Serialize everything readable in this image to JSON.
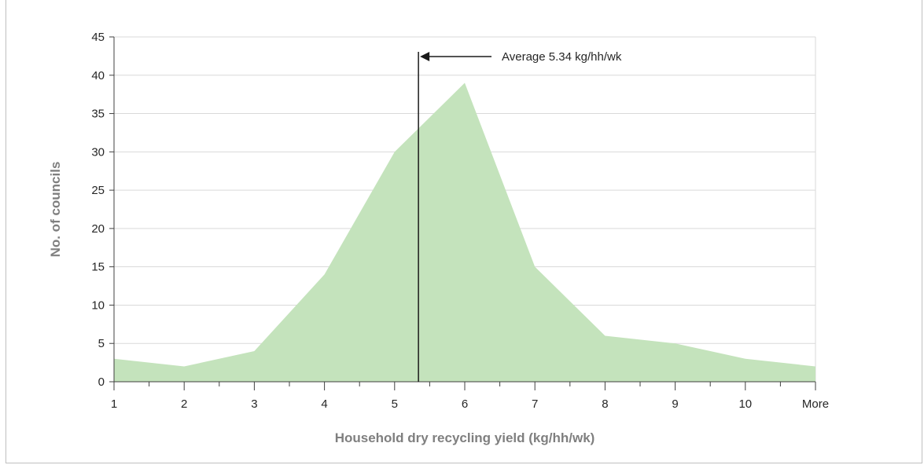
{
  "chart_data": {
    "type": "area",
    "categories": [
      "1",
      "2",
      "3",
      "4",
      "5",
      "6",
      "7",
      "8",
      "9",
      "10",
      "More"
    ],
    "values": [
      3,
      2,
      4,
      14,
      30,
      39,
      15,
      6,
      5,
      3,
      2
    ],
    "xlabel": "Household dry recycling yield (kg/hh/wk)",
    "ylabel": "No. of councils",
    "ylim": [
      0,
      45
    ],
    "yticks": [
      0,
      5,
      10,
      15,
      20,
      25,
      30,
      35,
      40,
      45
    ],
    "grid": true,
    "fill_color": "#c4e3bc",
    "average": {
      "value": 5.34,
      "label": "Average 5.34 kg/hh/wk"
    }
  }
}
